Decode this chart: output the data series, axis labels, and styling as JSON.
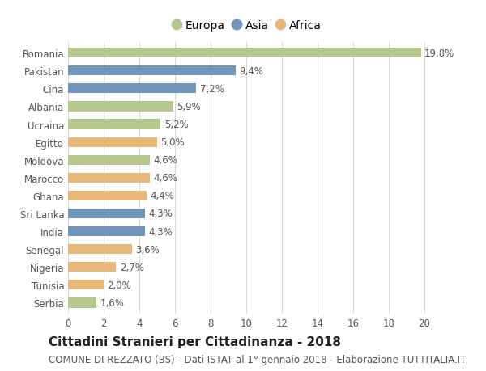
{
  "countries": [
    "Romania",
    "Pakistan",
    "Cina",
    "Albania",
    "Ucraina",
    "Egitto",
    "Moldova",
    "Marocco",
    "Ghana",
    "Sri Lanka",
    "India",
    "Senegal",
    "Nigeria",
    "Tunisia",
    "Serbia"
  ],
  "values": [
    19.8,
    9.4,
    7.2,
    5.9,
    5.2,
    5.0,
    4.6,
    4.6,
    4.4,
    4.3,
    4.3,
    3.6,
    2.7,
    2.0,
    1.6
  ],
  "labels": [
    "19,8%",
    "9,4%",
    "7,2%",
    "5,9%",
    "5,2%",
    "5,0%",
    "4,6%",
    "4,6%",
    "4,4%",
    "4,3%",
    "4,3%",
    "3,6%",
    "2,7%",
    "2,0%",
    "1,6%"
  ],
  "continents": [
    "Europa",
    "Asia",
    "Asia",
    "Europa",
    "Europa",
    "Africa",
    "Europa",
    "Africa",
    "Africa",
    "Asia",
    "Asia",
    "Africa",
    "Africa",
    "Africa",
    "Europa"
  ],
  "colors": {
    "Europa": "#b5c98e",
    "Asia": "#7096bc",
    "Africa": "#e8b87a"
  },
  "legend_order": [
    "Europa",
    "Asia",
    "Africa"
  ],
  "xlim": [
    0,
    21
  ],
  "xticks": [
    0,
    2,
    4,
    6,
    8,
    10,
    12,
    14,
    16,
    18,
    20
  ],
  "title": "Cittadini Stranieri per Cittadinanza - 2018",
  "subtitle": "COMUNE DI REZZATO (BS) - Dati ISTAT al 1° gennaio 2018 - Elaborazione TUTTITALIA.IT",
  "background_color": "#ffffff",
  "grid_color": "#d8d8d8",
  "bar_height": 0.55,
  "title_fontsize": 11,
  "subtitle_fontsize": 8.5,
  "tick_fontsize": 8.5,
  "label_fontsize": 8.5,
  "legend_fontsize": 10
}
